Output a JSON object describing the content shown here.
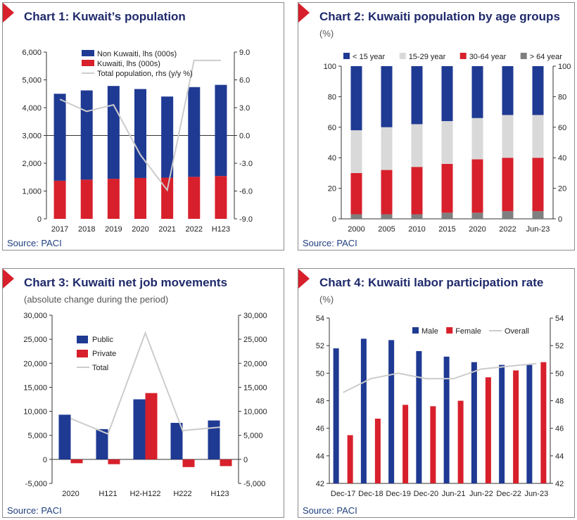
{
  "source_label": "Source: PACI",
  "charts": [
    {
      "title": "Chart 1: Kuwait’s population",
      "subtitle": "",
      "chart_data": {
        "type": "bar",
        "stacked": true,
        "categories": [
          "2017",
          "2018",
          "2019",
          "2020",
          "2021",
          "2022",
          "H123"
        ],
        "series": [
          {
            "name": "Non Kuwaiti, lhs (000s)",
            "color": "#1f3a93",
            "axis": "left",
            "values": [
              3130,
              3210,
              3340,
              3200,
              2920,
              3230,
              3280
            ]
          },
          {
            "name": "Kuwaiti, lhs (000s)",
            "color": "#d7202b",
            "axis": "left",
            "values": [
              1370,
              1410,
              1440,
              1470,
              1480,
              1510,
              1540
            ]
          },
          {
            "name": "Total population, rhs (y/y %)",
            "color": "#cccccc",
            "type": "line",
            "axis": "right",
            "values": [
              3.9,
              2.6,
              3.3,
              -2.1,
              -5.9,
              8.1,
              8.1
            ]
          }
        ],
        "left_axis": {
          "min": 0,
          "max": 6000,
          "ticks": [
            0,
            1000,
            2000,
            3000,
            4000,
            5000,
            6000
          ],
          "labels": [
            "0",
            "1,000",
            "2,000",
            "3,000",
            "4,000",
            "5,000",
            "6,000"
          ]
        },
        "right_axis": {
          "min": -9,
          "max": 9,
          "ticks": [
            -9,
            -6,
            -3,
            0,
            3,
            6,
            9
          ],
          "labels": [
            "-9.0",
            "-6.0",
            "-3.0",
            "0.0",
            "3.0",
            "6.0",
            "9.0"
          ]
        },
        "zero_line_right": 0,
        "legend_position": "top-center"
      }
    },
    {
      "title": "Chart 2:  Kuwaiti population by age groups",
      "subtitle": "(%)",
      "chart_data": {
        "type": "bar",
        "stacked": true,
        "categories": [
          "2000",
          "2005",
          "2010",
          "2015",
          "2020",
          "2022",
          "Jun-23"
        ],
        "series": [
          {
            "name": "< 15 year",
            "color": "#1f3a93",
            "axis": "left",
            "values": [
              42,
              40,
              38,
              36,
              34,
              32,
              32
            ]
          },
          {
            "name": "15-29 year",
            "color": "#d9d9d9",
            "axis": "left",
            "values": [
              28,
              28,
              28,
              28,
              27,
              28,
              28
            ]
          },
          {
            "name": "30-64 year",
            "color": "#d7202b",
            "axis": "left",
            "values": [
              27,
              29,
              31,
              32,
              35,
              35,
              35
            ]
          },
          {
            "name": "> 64 year",
            "color": "#7f7f7f",
            "axis": "left",
            "values": [
              3,
              3,
              3,
              4,
              4,
              5,
              5
            ]
          }
        ],
        "left_axis": {
          "min": 0,
          "max": 100,
          "ticks": [
            0,
            20,
            40,
            60,
            80,
            100
          ],
          "labels": [
            "0",
            "20",
            "40",
            "60",
            "80",
            "100"
          ]
        },
        "right_axis": {
          "min": 0,
          "max": 100,
          "ticks": [
            0,
            20,
            40,
            60,
            80,
            100
          ],
          "labels": [
            "0",
            "20",
            "40",
            "60",
            "80",
            "100"
          ]
        },
        "legend_position": "top"
      }
    },
    {
      "title": "Chart 3:  Kuwaiti net job movements",
      "subtitle": "(absolute change during the period)",
      "chart_data": {
        "type": "bar",
        "stacked": false,
        "categories": [
          "2020",
          "H121",
          "H2-H122",
          "H222",
          "H123"
        ],
        "series": [
          {
            "name": "Public",
            "color": "#1f3a93",
            "axis": "left",
            "values": [
              9300,
              6300,
              12500,
              7600,
              8100
            ]
          },
          {
            "name": "Private",
            "color": "#d7202b",
            "axis": "left",
            "values": [
              -800,
              -1000,
              13800,
              -1600,
              -1400
            ]
          },
          {
            "name": "Total",
            "color": "#cccccc",
            "type": "line",
            "axis": "left",
            "values": [
              8500,
              5300,
              26300,
              6000,
              6700
            ]
          }
        ],
        "left_axis": {
          "min": -5000,
          "max": 30000,
          "ticks": [
            -5000,
            0,
            5000,
            10000,
            15000,
            20000,
            25000,
            30000
          ],
          "labels": [
            "-5,000",
            "0",
            "5,000",
            "10,000",
            "15,000",
            "20,000",
            "25,000",
            "30,000"
          ]
        },
        "right_axis": {
          "min": -5000,
          "max": 30000,
          "ticks": [
            -5000,
            0,
            5000,
            10000,
            15000,
            20000,
            25000,
            30000
          ],
          "labels": [
            "-5,000",
            "0",
            "5,000",
            "10,000",
            "15,000",
            "20,000",
            "25,000",
            "30,000"
          ]
        },
        "legend_position": "top-left"
      }
    },
    {
      "title": "Chart 4:  Kuwaiti labor participation rate",
      "subtitle": "(%)",
      "chart_data": {
        "type": "bar",
        "stacked": false,
        "categories": [
          "Dec-17",
          "Dec-18",
          "Dec-19",
          "Dec-20",
          "Jun-21",
          "Jun-22",
          "Dec-22",
          "Jun-23"
        ],
        "series": [
          {
            "name": "Male",
            "color": "#1f3a93",
            "axis": "left",
            "values": [
              51.8,
              52.5,
              52.4,
              51.6,
              51.2,
              50.8,
              50.6,
              50.6
            ]
          },
          {
            "name": "Female",
            "color": "#d7202b",
            "axis": "left",
            "values": [
              45.5,
              46.7,
              47.7,
              47.6,
              48.0,
              49.7,
              50.2,
              50.8
            ]
          },
          {
            "name": "Overall",
            "color": "#cccccc",
            "type": "line",
            "axis": "left",
            "values": [
              48.6,
              49.6,
              50.0,
              49.6,
              49.6,
              50.3,
              50.5,
              50.7
            ]
          }
        ],
        "left_axis": {
          "min": 42,
          "max": 54,
          "ticks": [
            42,
            44,
            46,
            48,
            50,
            52,
            54
          ],
          "labels": [
            "42",
            "44",
            "46",
            "48",
            "50",
            "52",
            "54"
          ]
        },
        "right_axis": {
          "min": 42,
          "max": 54,
          "ticks": [
            42,
            44,
            46,
            48,
            50,
            52,
            54
          ],
          "labels": [
            "42",
            "44",
            "46",
            "48",
            "50",
            "52",
            "54"
          ]
        },
        "legend_position": "top-right"
      }
    }
  ]
}
